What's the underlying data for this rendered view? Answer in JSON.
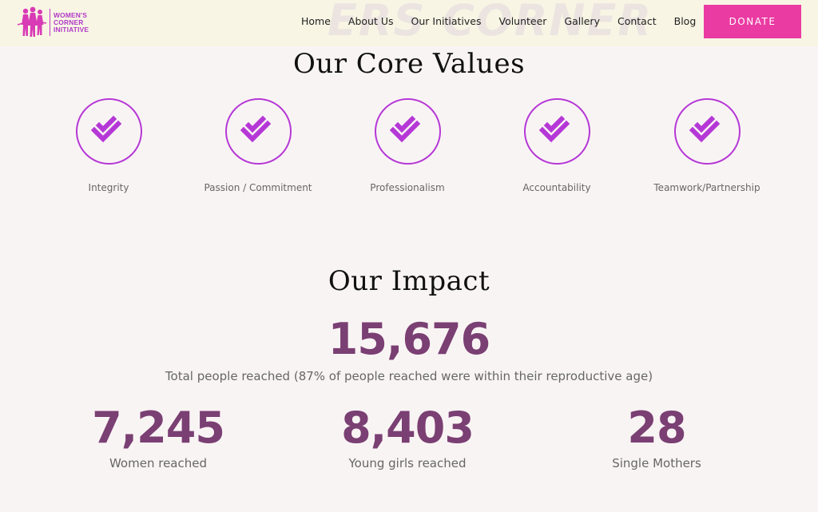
{
  "header": {
    "logo_lines": [
      "WOMEN'S",
      "CORNER",
      "INITIATIVE"
    ],
    "watermark": "ERS CORNER",
    "nav": [
      "Home",
      "About Us",
      "Our Initiatives",
      "Volunteer",
      "Gallery",
      "Contact",
      "Blog"
    ],
    "donate_label": "DONATE"
  },
  "core_values": {
    "title": "Our Core Values",
    "items": [
      "Integrity",
      "Passion / Commitment",
      "Professionalism",
      "Accountability",
      "Teamwork/Partnership"
    ],
    "icon": "double-check-icon"
  },
  "impact": {
    "title": "Our Impact",
    "total": "15,676",
    "total_label": "Total people reached (87% of people reached were within their reproductive age)",
    "stats": [
      {
        "number": "7,245",
        "label": "Women reached"
      },
      {
        "number": "8,403",
        "label": "Young girls reached"
      },
      {
        "number": "28",
        "label": "Single Mothers"
      }
    ]
  },
  "colors": {
    "accent": "#b538d6",
    "donate": "#ea3ba2",
    "impact_number": "#7a3f73",
    "header_bg": "#f8f5e4",
    "page_bg": "#f9f4f4"
  }
}
